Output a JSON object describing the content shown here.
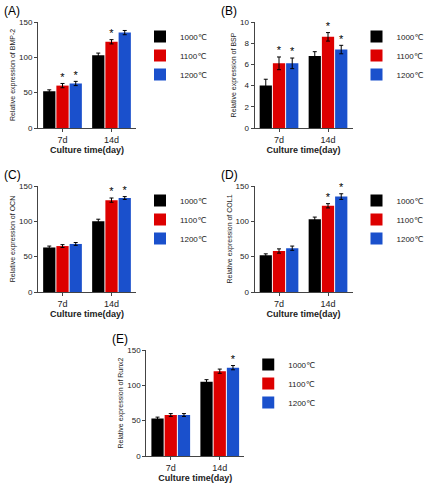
{
  "chart_data": [
    {
      "type": "bar",
      "title": "(A)",
      "xlabel": "Culture time(day)",
      "ylabel": "Relative expression of BMP-2",
      "categories": [
        "7d",
        "14d"
      ],
      "series": [
        {
          "name": "1000℃",
          "color": "#000000",
          "values": [
            52,
            103
          ],
          "errors": [
            2,
            3
          ],
          "significance": [
            null,
            null
          ]
        },
        {
          "name": "1100℃",
          "color": "#dd0000",
          "values": [
            60,
            122
          ],
          "errors": [
            3,
            3
          ],
          "significance": [
            "*",
            "*"
          ]
        },
        {
          "name": "1200℃",
          "color": "#1a50cc",
          "values": [
            63,
            135
          ],
          "errors": [
            3,
            3
          ],
          "significance": [
            "*",
            null
          ]
        }
      ],
      "ylim": [
        0,
        150
      ],
      "yticks": [
        0,
        50,
        100,
        150
      ],
      "grid": false,
      "legend": "upper right"
    },
    {
      "type": "bar",
      "title": "(B)",
      "xlabel": "Culture time(day)",
      "ylabel": "Relative expression of BSP",
      "categories": [
        "7d",
        "14d"
      ],
      "series": [
        {
          "name": "1000℃",
          "color": "#000000",
          "values": [
            4.0,
            6.8
          ],
          "errors": [
            0.6,
            0.4
          ],
          "significance": [
            null,
            null
          ]
        },
        {
          "name": "1100℃",
          "color": "#dd0000",
          "values": [
            6.1,
            8.6
          ],
          "errors": [
            0.6,
            0.4
          ],
          "significance": [
            "*",
            "*"
          ]
        },
        {
          "name": "1200℃",
          "color": "#1a50cc",
          "values": [
            6.1,
            7.4
          ],
          "errors": [
            0.5,
            0.4
          ],
          "significance": [
            "*",
            "*"
          ]
        }
      ],
      "ylim": [
        0,
        10
      ],
      "yticks": [
        0,
        2,
        4,
        6,
        8,
        10
      ],
      "grid": false,
      "legend": "upper right"
    },
    {
      "type": "bar",
      "title": "(C)",
      "xlabel": "Culture time(day)",
      "ylabel": "Relative expression of OCN",
      "categories": [
        "7d",
        "14d"
      ],
      "series": [
        {
          "name": "1000℃",
          "color": "#000000",
          "values": [
            63,
            100
          ],
          "errors": [
            2,
            3
          ],
          "significance": [
            null,
            null
          ]
        },
        {
          "name": "1100℃",
          "color": "#dd0000",
          "values": [
            65,
            130
          ],
          "errors": [
            2,
            3
          ],
          "significance": [
            null,
            "*"
          ]
        },
        {
          "name": "1200℃",
          "color": "#1a50cc",
          "values": [
            68,
            133
          ],
          "errors": [
            2,
            2
          ],
          "significance": [
            null,
            "*"
          ]
        }
      ],
      "ylim": [
        0,
        150
      ],
      "yticks": [
        0,
        50,
        100,
        150
      ],
      "grid": false,
      "legend": "upper right"
    },
    {
      "type": "bar",
      "title": "(D)",
      "xlabel": "Culture time(day)",
      "ylabel": "Relative expression of COL1",
      "categories": [
        "7d",
        "14d"
      ],
      "series": [
        {
          "name": "1000℃",
          "color": "#000000",
          "values": [
            52,
            103
          ],
          "errors": [
            2,
            3
          ],
          "significance": [
            null,
            null
          ]
        },
        {
          "name": "1100℃",
          "color": "#dd0000",
          "values": [
            58,
            122
          ],
          "errors": [
            3,
            3
          ],
          "significance": [
            null,
            "*"
          ]
        },
        {
          "name": "1200℃",
          "color": "#1a50cc",
          "values": [
            62,
            135
          ],
          "errors": [
            3,
            4
          ],
          "significance": [
            null,
            "*"
          ]
        }
      ],
      "ylim": [
        0,
        150
      ],
      "yticks": [
        0,
        50,
        100,
        150
      ],
      "grid": false,
      "legend": "upper right"
    },
    {
      "type": "bar",
      "title": "(E)",
      "xlabel": "Culture time(day)",
      "ylabel": "Relative expression of Runx2",
      "categories": [
        "7d",
        "14d"
      ],
      "series": [
        {
          "name": "1000℃",
          "color": "#000000",
          "values": [
            53,
            105
          ],
          "errors": [
            2,
            3
          ],
          "significance": [
            null,
            null
          ]
        },
        {
          "name": "1100℃",
          "color": "#dd0000",
          "values": [
            58,
            120
          ],
          "errors": [
            2,
            3
          ],
          "significance": [
            null,
            null
          ]
        },
        {
          "name": "1200℃",
          "color": "#1a50cc",
          "values": [
            58,
            125
          ],
          "errors": [
            2,
            3
          ],
          "significance": [
            null,
            "*"
          ]
        }
      ],
      "ylim": [
        0,
        150
      ],
      "yticks": [
        0,
        50,
        100,
        150
      ],
      "grid": false,
      "legend": "upper right"
    }
  ]
}
